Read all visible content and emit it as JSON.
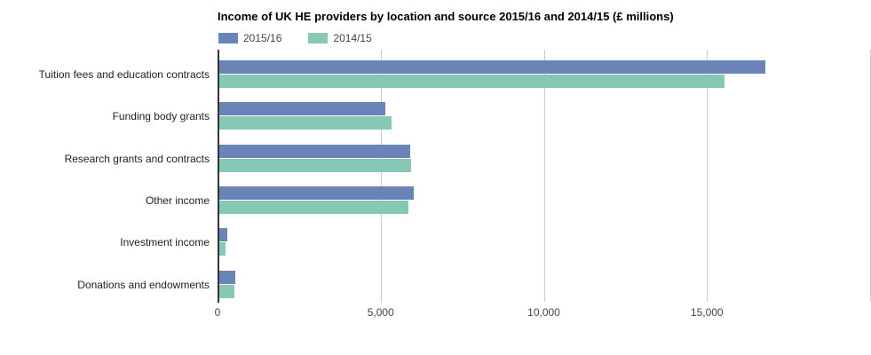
{
  "chart_data": {
    "type": "bar",
    "orientation": "horizontal",
    "title": "Income of UK HE providers by location and source 2015/16 and 2014/15 (£ millions)",
    "categories": [
      "Tuition fees and education contracts",
      "Funding body grants",
      "Research grants and contracts",
      "Other income",
      "Investment income",
      "Donations and endowments"
    ],
    "series": [
      {
        "name": "2015/16",
        "color": "#6b84b8",
        "values": [
          16787,
          5146,
          5905,
          6022,
          294,
          543
        ]
      },
      {
        "name": "2014/15",
        "color": "#85c8b6",
        "values": [
          15548,
          5343,
          5937,
          5854,
          232,
          529
        ]
      }
    ],
    "xlabel": "",
    "ylabel": "",
    "xlim": [
      0,
      20000
    ],
    "x_ticks": [
      {
        "value": 0,
        "label": "0"
      },
      {
        "value": 5000,
        "label": "5,000"
      },
      {
        "value": 10000,
        "label": "10,000"
      },
      {
        "value": 15000,
        "label": "15,000"
      },
      {
        "value": 20000,
        "label": ""
      }
    ],
    "grid": true,
    "legend_position": "top-left",
    "colors": {
      "background": "#ffffff",
      "axis_line": "#333333",
      "gridline": "#cccccc",
      "title_text": "#000000",
      "category_text": "#222222",
      "tick_text": "#444444",
      "legend_text": "#444444"
    }
  }
}
